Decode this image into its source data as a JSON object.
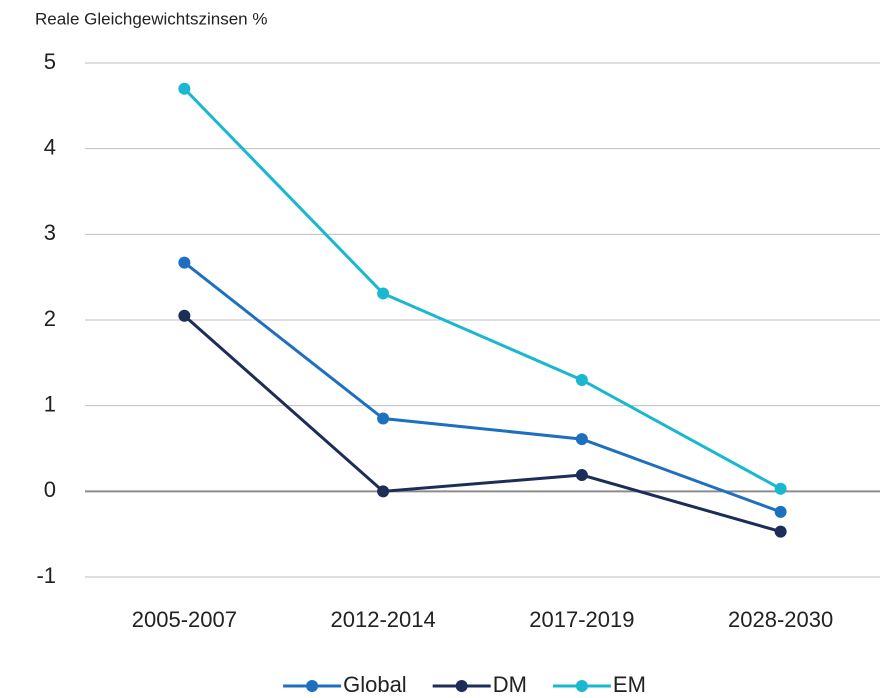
{
  "chart_data": {
    "type": "line",
    "title": "Reale Gleichgewichtszinsen %",
    "categories": [
      "2005-2007",
      "2012-2014",
      "2017-2019",
      "2028-2030"
    ],
    "series": [
      {
        "name": "Global",
        "color": "#1f6fc0",
        "values": [
          2.67,
          0.85,
          0.61,
          -0.24
        ]
      },
      {
        "name": "DM",
        "color": "#1c2d58",
        "values": [
          2.05,
          0.0,
          0.19,
          -0.47
        ]
      },
      {
        "name": "EM",
        "color": "#1ab8d0",
        "values": [
          4.7,
          2.31,
          1.3,
          0.03
        ]
      }
    ],
    "ylim": [
      -1,
      5
    ],
    "yticks": [
      -1,
      0,
      1,
      2,
      3,
      4,
      5
    ],
    "grid": true,
    "legend": "bottom"
  }
}
